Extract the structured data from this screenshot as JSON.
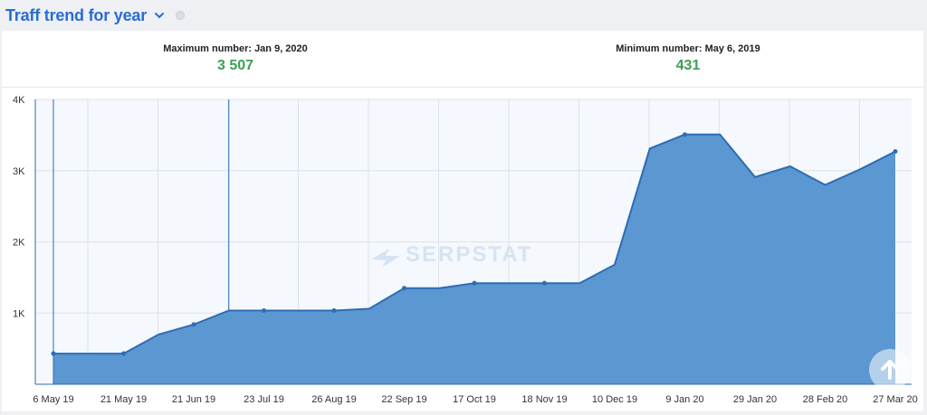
{
  "header": {
    "title": "Traff trend for year",
    "chevron_icon": "chevron-down-icon",
    "info_icon": "info-icon"
  },
  "stats": {
    "max_label": "Maximum number: Jan 9, 2020",
    "max_value": "3 507",
    "min_label": "Minimum number: May 6, 2019",
    "min_value": "431"
  },
  "watermark": "SERPSTAT",
  "colors": {
    "area": "#5b97d1",
    "line": "#2f6cb3",
    "accent": "#2a6bd6",
    "value": "#3aa052"
  },
  "scroll_icon": "arrow-up-icon",
  "chart_data": {
    "type": "area",
    "title": "Traff trend for year",
    "xlabel": "",
    "ylabel": "",
    "ylim": [
      0,
      4000
    ],
    "y_ticks": [
      1000,
      2000,
      3000,
      4000
    ],
    "y_tick_labels": [
      "1K",
      "2K",
      "3K",
      "4K"
    ],
    "x_tick_labels": [
      "6 May 19",
      "21 May 19",
      "21 Jun 19",
      "23 Jul 19",
      "26 Aug 19",
      "22 Sep 19",
      "17 Oct 19",
      "18 Nov 19",
      "10 Dec 19",
      "9 Jan 20",
      "29 Jan 20",
      "28 Feb 20",
      "27 Mar 20"
    ],
    "grid": true,
    "series": [
      {
        "values": [
          431,
          431,
          431,
          700,
          840,
          1035,
          1035,
          1035,
          1035,
          1060,
          1350,
          1350,
          1420,
          1420,
          1420,
          1420,
          1680,
          3310,
          3507,
          3507,
          2910,
          3060,
          2800,
          3020,
          3270
        ],
        "markers": [
          true,
          false,
          true,
          false,
          true,
          false,
          true,
          false,
          true,
          false,
          true,
          false,
          true,
          false,
          true,
          false,
          false,
          false,
          true,
          false,
          false,
          false,
          false,
          false,
          true
        ]
      }
    ]
  }
}
